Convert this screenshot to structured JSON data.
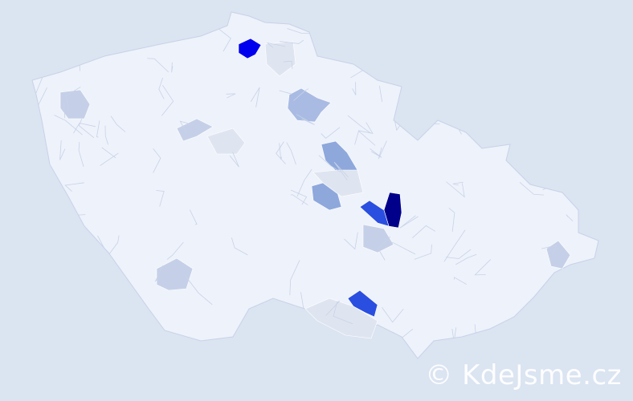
{
  "watermark": "© KdeJsme.cz",
  "colors": {
    "background": "#dbe4f1",
    "country_fill": "#eef2fa",
    "district_border": "#c8d2e8",
    "level_1": "#dfe5f0",
    "level_2": "#c5d0e8",
    "level_3": "#a9bbe3",
    "level_4": "#8ea8dc",
    "level_5": "#2a4ee0",
    "level_6": "#0000ee",
    "level_7": "#00008b"
  },
  "highlighted_districts": [
    {
      "id": "north-blue",
      "level": "level_6"
    },
    {
      "id": "east-navy",
      "level": "level_7"
    },
    {
      "id": "east-blue",
      "level": "level_5"
    },
    {
      "id": "south-blue",
      "level": "level_5"
    },
    {
      "id": "central-1",
      "level": "level_4"
    },
    {
      "id": "central-2",
      "level": "level_4"
    },
    {
      "id": "north-light",
      "level": "level_3"
    },
    {
      "id": "west-light",
      "level": "level_2"
    },
    {
      "id": "southwest-light",
      "level": "level_2"
    },
    {
      "id": "east-light",
      "level": "level_2"
    },
    {
      "id": "south-pale",
      "level": "level_1"
    },
    {
      "id": "north-pale",
      "level": "level_1"
    },
    {
      "id": "west-pale",
      "level": "level_1"
    },
    {
      "id": "center-pale",
      "level": "level_1"
    },
    {
      "id": "south-light-2",
      "level": "level_2"
    },
    {
      "id": "west-light-2",
      "level": "level_2"
    }
  ]
}
